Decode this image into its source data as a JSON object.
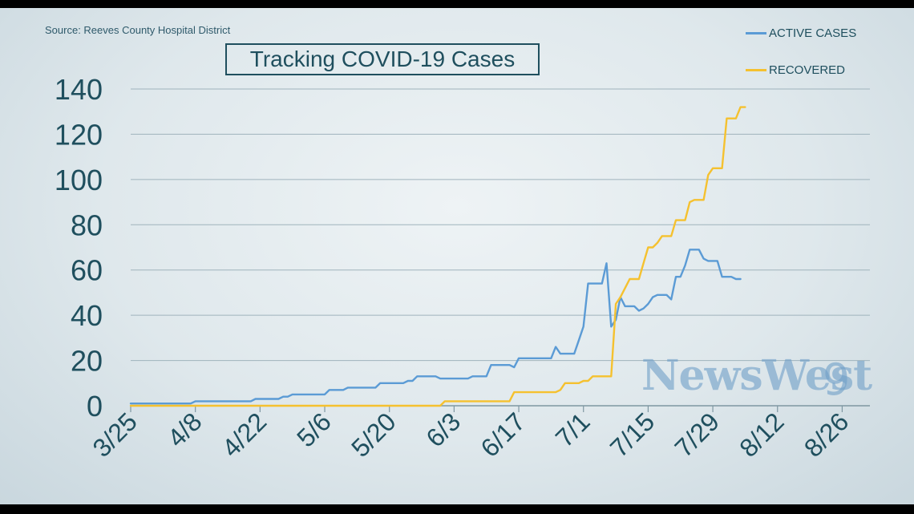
{
  "source": "Source: Reeves County Hospital District",
  "title": "Tracking COVID-19 Cases",
  "watermark": "NewsWest",
  "watermark_icon": "star-9-logo-icon",
  "colors": {
    "active": "#5b9bd5",
    "recovered": "#f5c12f",
    "axis_text": "#1f4f5e",
    "grid": "#9fb3bc"
  },
  "chart_data": {
    "type": "line",
    "title": "Tracking COVID-19 Cases",
    "xlabel": "",
    "ylabel": "",
    "ylim": [
      0,
      140
    ],
    "yticks": [
      0,
      20,
      40,
      60,
      80,
      100,
      120,
      140
    ],
    "xlim": [
      "3/25",
      "9/1"
    ],
    "xticks": [
      "3/25",
      "4/8",
      "4/22",
      "5/6",
      "5/20",
      "6/3",
      "6/17",
      "7/1",
      "7/15",
      "7/29",
      "8/12",
      "8/26"
    ],
    "grid": "horizontal",
    "legend_position": "top-right",
    "series": [
      {
        "name": "ACTIVE CASES",
        "color": "#5b9bd5",
        "points": [
          [
            "3/25",
            1
          ],
          [
            "4/7",
            1
          ],
          [
            "4/8",
            2
          ],
          [
            "4/20",
            2
          ],
          [
            "4/21",
            3
          ],
          [
            "4/26",
            3
          ],
          [
            "4/27",
            4
          ],
          [
            "4/28",
            4
          ],
          [
            "4/29",
            5
          ],
          [
            "5/6",
            5
          ],
          [
            "5/7",
            7
          ],
          [
            "5/10",
            7
          ],
          [
            "5/11",
            8
          ],
          [
            "5/17",
            8
          ],
          [
            "5/18",
            10
          ],
          [
            "5/23",
            10
          ],
          [
            "5/24",
            11
          ],
          [
            "5/25",
            11
          ],
          [
            "5/26",
            13
          ],
          [
            "5/30",
            13
          ],
          [
            "5/31",
            12
          ],
          [
            "6/6",
            12
          ],
          [
            "6/7",
            13
          ],
          [
            "6/10",
            13
          ],
          [
            "6/11",
            18
          ],
          [
            "6/15",
            18
          ],
          [
            "6/16",
            17
          ],
          [
            "6/17",
            21
          ],
          [
            "6/24",
            21
          ],
          [
            "6/25",
            26
          ],
          [
            "6/26",
            23
          ],
          [
            "6/29",
            23
          ],
          [
            "6/30",
            29
          ],
          [
            "7/1",
            35
          ],
          [
            "7/2",
            54
          ],
          [
            "7/5",
            54
          ],
          [
            "7/6",
            63
          ],
          [
            "7/7",
            35
          ],
          [
            "7/8",
            38
          ],
          [
            "7/9",
            48
          ],
          [
            "7/10",
            44
          ],
          [
            "7/12",
            44
          ],
          [
            "7/13",
            42
          ],
          [
            "7/14",
            43
          ],
          [
            "7/15",
            45
          ],
          [
            "7/16",
            48
          ],
          [
            "7/17",
            49
          ],
          [
            "7/19",
            49
          ],
          [
            "7/20",
            47
          ],
          [
            "7/21",
            57
          ],
          [
            "7/22",
            57
          ],
          [
            "7/23",
            62
          ],
          [
            "7/24",
            69
          ],
          [
            "7/26",
            69
          ],
          [
            "7/27",
            65
          ],
          [
            "7/28",
            64
          ],
          [
            "7/30",
            64
          ],
          [
            "7/31",
            57
          ],
          [
            "8/2",
            57
          ],
          [
            "8/3",
            56
          ],
          [
            "8/4",
            56
          ]
        ]
      },
      {
        "name": "RECOVERED",
        "color": "#f5c12f",
        "points": [
          [
            "3/25",
            0
          ],
          [
            "5/31",
            0
          ],
          [
            "6/1",
            2
          ],
          [
            "6/15",
            2
          ],
          [
            "6/16",
            6
          ],
          [
            "6/25",
            6
          ],
          [
            "6/26",
            7
          ],
          [
            "6/27",
            10
          ],
          [
            "6/30",
            10
          ],
          [
            "7/1",
            11
          ],
          [
            "7/2",
            11
          ],
          [
            "7/3",
            13
          ],
          [
            "7/7",
            13
          ],
          [
            "7/8",
            45
          ],
          [
            "7/9",
            48
          ],
          [
            "7/10",
            52
          ],
          [
            "7/11",
            56
          ],
          [
            "7/13",
            56
          ],
          [
            "7/14",
            63
          ],
          [
            "7/15",
            70
          ],
          [
            "7/16",
            70
          ],
          [
            "7/17",
            72
          ],
          [
            "7/18",
            75
          ],
          [
            "7/20",
            75
          ],
          [
            "7/21",
            82
          ],
          [
            "7/23",
            82
          ],
          [
            "7/24",
            90
          ],
          [
            "7/25",
            91
          ],
          [
            "7/27",
            91
          ],
          [
            "7/28",
            102
          ],
          [
            "7/29",
            105
          ],
          [
            "7/31",
            105
          ],
          [
            "8/1",
            127
          ],
          [
            "8/3",
            127
          ],
          [
            "8/4",
            132
          ],
          [
            "8/5",
            132
          ]
        ]
      }
    ]
  }
}
